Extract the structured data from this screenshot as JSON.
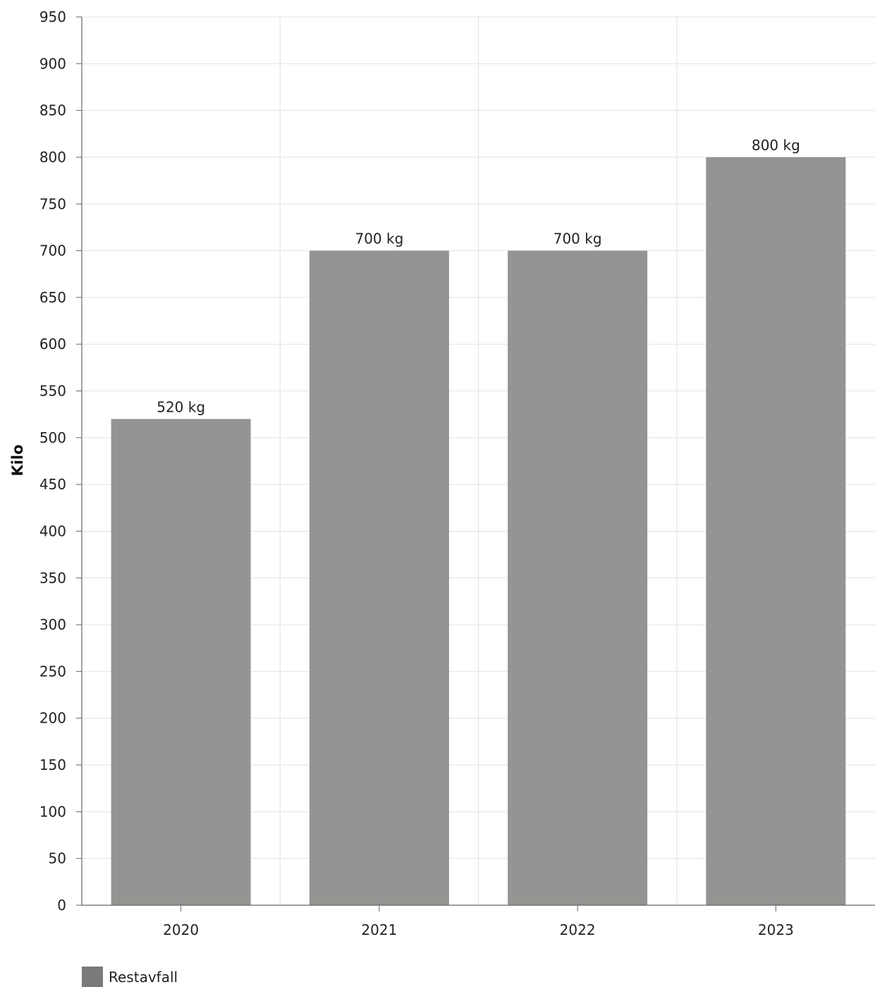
{
  "chart_data": {
    "type": "bar",
    "categories": [
      "2020",
      "2021",
      "2022",
      "2023"
    ],
    "series": [
      {
        "name": "Restavfall",
        "values": [
          520,
          700,
          700,
          800
        ],
        "data_labels": [
          "520 kg",
          "700 kg",
          "700 kg",
          "800 kg"
        ],
        "color": "#949492"
      }
    ],
    "ylabel": "Kilo",
    "xlabel": "",
    "ylim": [
      0,
      950
    ],
    "yticks": [
      0,
      50,
      100,
      150,
      200,
      250,
      300,
      350,
      400,
      450,
      500,
      550,
      600,
      650,
      700,
      750,
      800,
      850,
      900,
      950
    ],
    "grid": true,
    "legend_position": "bottom-left"
  },
  "colors": {
    "bar": "#949492",
    "legend_swatch": "#7a7a7a",
    "grid": "#e2e2e2",
    "axis": "#666666",
    "text": "#222222"
  }
}
